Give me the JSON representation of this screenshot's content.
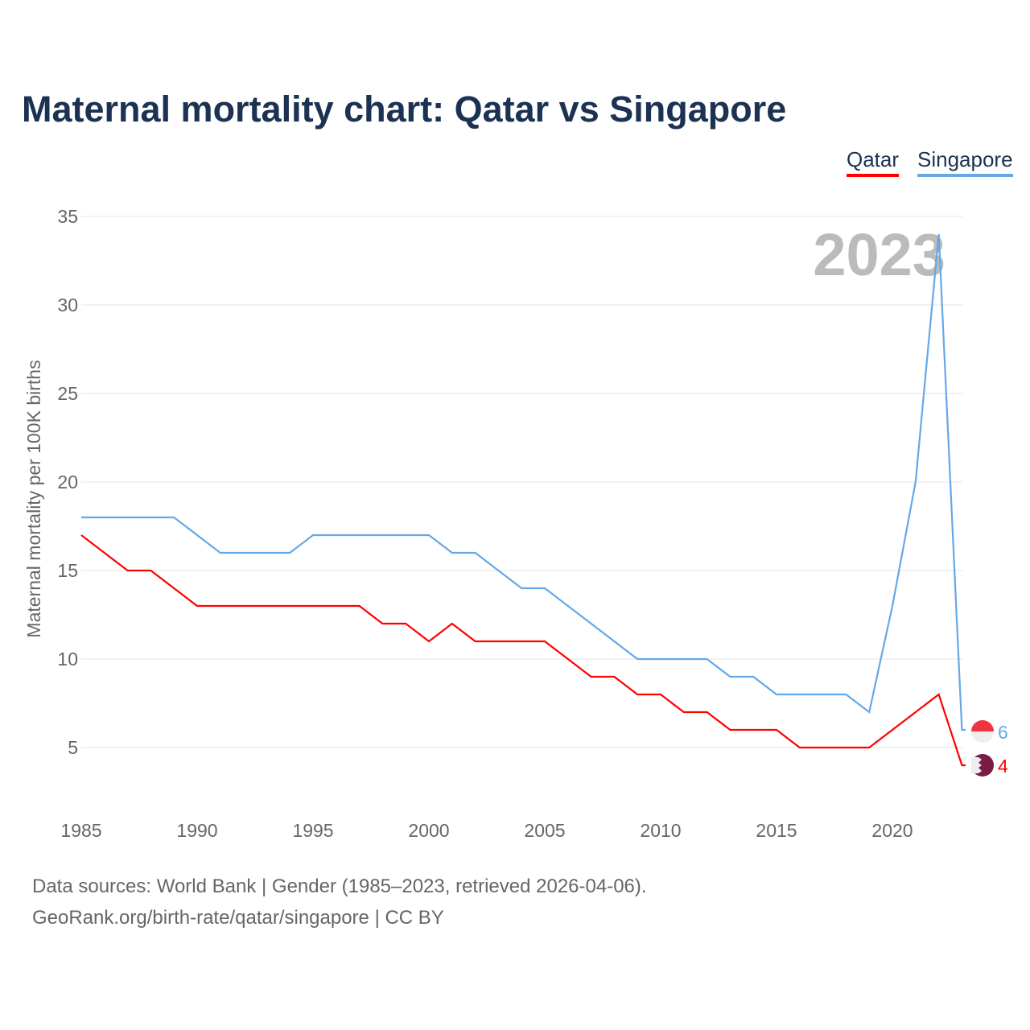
{
  "title": "Maternal mortality chart: Qatar vs Singapore",
  "footer": {
    "line1": "Data sources: World Bank | Gender (1985–2023, retrieved 2026-04-06).",
    "line2": "GeoRank.org/birth-rate/qatar/singapore | CC BY"
  },
  "chart_data": {
    "type": "line",
    "title": "Maternal mortality chart: Qatar vs Singapore",
    "xlabel": "",
    "ylabel": "Maternal mortality per 100K births",
    "xlim": [
      1985,
      2023
    ],
    "ylim": [
      2,
      36
    ],
    "yticks": [
      5,
      10,
      15,
      20,
      25,
      30,
      35
    ],
    "xticks": [
      1985,
      1990,
      1995,
      2000,
      2005,
      2010,
      2015,
      2020
    ],
    "watermark_year": "2023",
    "legend_position": "top-right",
    "x": [
      1985,
      1986,
      1987,
      1988,
      1989,
      1990,
      1991,
      1992,
      1993,
      1994,
      1995,
      1996,
      1997,
      1998,
      1999,
      2000,
      2001,
      2002,
      2003,
      2004,
      2005,
      2006,
      2007,
      2008,
      2009,
      2010,
      2011,
      2012,
      2013,
      2014,
      2015,
      2016,
      2017,
      2018,
      2019,
      2020,
      2021,
      2022,
      2023
    ],
    "series": [
      {
        "name": "Qatar",
        "color": "#ff0000",
        "end_label": "4",
        "values": [
          17,
          16,
          15,
          15,
          14,
          13,
          13,
          13,
          13,
          13,
          13,
          13,
          13,
          12,
          12,
          11,
          12,
          11,
          11,
          11,
          11,
          10,
          9,
          9,
          8,
          8,
          7,
          7,
          6,
          6,
          6,
          5,
          5,
          5,
          5,
          6,
          7,
          8,
          4
        ]
      },
      {
        "name": "Singapore",
        "color": "#64a8e8",
        "end_label": "6",
        "values": [
          18,
          18,
          18,
          18,
          18,
          17,
          16,
          16,
          16,
          16,
          17,
          17,
          17,
          17,
          17,
          17,
          16,
          16,
          15,
          14,
          14,
          13,
          12,
          11,
          10,
          10,
          10,
          10,
          9,
          9,
          8,
          8,
          8,
          8,
          7,
          13,
          20,
          34,
          6
        ]
      }
    ]
  }
}
